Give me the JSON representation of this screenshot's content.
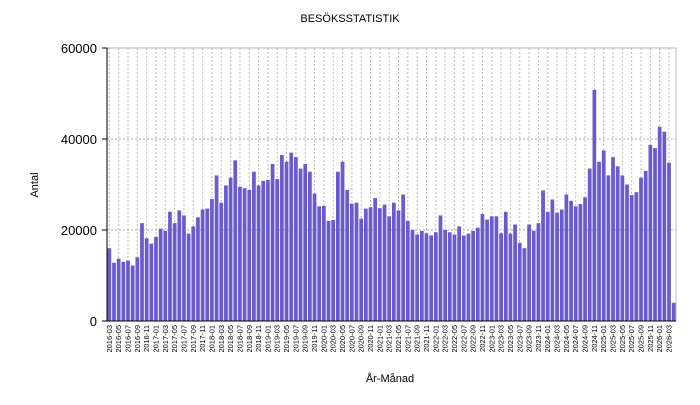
{
  "chart_data": {
    "type": "bar",
    "title": "BESÖKSSTATISTIK",
    "x_label": "År-Månad",
    "y_label": "Antal",
    "categories": [
      "2016-03",
      null,
      "2016-05",
      null,
      "2016-07",
      null,
      "2016-09",
      null,
      "2016-11",
      null,
      "2017-01",
      null,
      "2017-03",
      null,
      "2017-05",
      null,
      "2017-07",
      null,
      "2017-09",
      null,
      "2017-11",
      null,
      "2018-01",
      null,
      "2018-03",
      null,
      "2018-05",
      null,
      "2018-07",
      null,
      "2018-09",
      null,
      "2018-11",
      null,
      "2019-01",
      null,
      "2019-03",
      null,
      "2019-05",
      null,
      "2019-07",
      null,
      "2019-09",
      null,
      "2019-11",
      null,
      "2020-01",
      null,
      "2020-03",
      null,
      "2020-05",
      null,
      "2020-07",
      null,
      "2020-09",
      null,
      "2020-11",
      null,
      "2021-01",
      null,
      "2021-03",
      null,
      "2021-05",
      null,
      "2021-07",
      null,
      "2021-09",
      null,
      "2021-11",
      null,
      "2022-01",
      null,
      "2022-03",
      null,
      "2022-05",
      null,
      "2022-07",
      null,
      "2022-09",
      null,
      "2022-11",
      null,
      "2023-01",
      null,
      "2023-03",
      null,
      "2023-05",
      null,
      "2023-07",
      null,
      "2023-09",
      null,
      "2023-11",
      null,
      "2024-01",
      null,
      "2024-03",
      null,
      "2024-05",
      null,
      "2024-07",
      null,
      "2024-09",
      null,
      "2024-11",
      null,
      "2025-01",
      null,
      "2025-03",
      null,
      "2025-05",
      null,
      "2025-07",
      null,
      "2025-09",
      null,
      "2025-11",
      null,
      "2026-01",
      null,
      "2026-03",
      null
    ],
    "values": [
      16000,
      12800,
      13700,
      13000,
      13300,
      12200,
      14000,
      21500,
      18200,
      17000,
      18500,
      20300,
      19800,
      24000,
      21500,
      24300,
      23200,
      19200,
      20800,
      22800,
      24500,
      24700,
      26800,
      32000,
      26000,
      29800,
      31500,
      35300,
      29500,
      29200,
      28800,
      32800,
      29800,
      30800,
      31000,
      34500,
      31200,
      36500,
      35000,
      37000,
      36000,
      33500,
      34500,
      32800,
      28000,
      25200,
      25300,
      22000,
      22200,
      32800,
      35000,
      28800,
      25800,
      26000,
      22500,
      24700,
      25000,
      27000,
      24800,
      25600,
      23000,
      26000,
      24300,
      27800,
      22000,
      20000,
      19000,
      19800,
      19300,
      18800,
      19500,
      23200,
      20000,
      19500,
      19000,
      20800,
      18800,
      19200,
      19800,
      20500,
      23500,
      22300,
      23000,
      23000,
      19300,
      24000,
      19200,
      21200,
      17200,
      16000,
      21200,
      19800,
      21500,
      28700,
      24000,
      26700,
      23800,
      24500,
      27800,
      26400,
      25200,
      25700,
      27200,
      33500,
      50800,
      35000,
      37500,
      32000,
      36000,
      34000,
      32000,
      30000,
      27700,
      28300,
      31500,
      33000,
      38700,
      38000,
      42700,
      41600,
      34800,
      4000
    ],
    "color": "#6a5acd",
    "ylim": [
      0,
      60000
    ],
    "yticks": [
      0,
      20000,
      40000,
      60000
    ],
    "grid": true
  }
}
